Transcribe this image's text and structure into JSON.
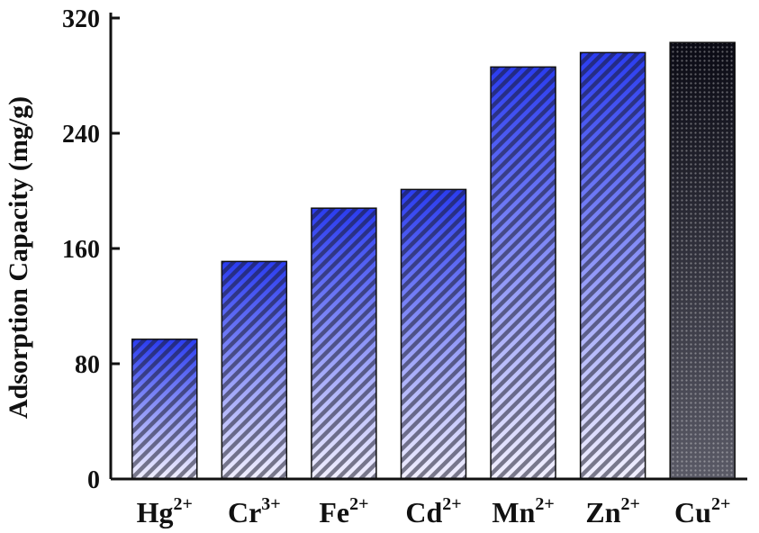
{
  "chart_data": {
    "type": "bar",
    "title": "",
    "xlabel": "",
    "ylabel": "Adsorption Capacity (mg/g)",
    "ylim": [
      0,
      320
    ],
    "yticks": [
      0,
      80,
      160,
      240,
      320
    ],
    "grid": false,
    "legend": "none",
    "categories": [
      {
        "base": "Hg",
        "sup": "2+"
      },
      {
        "base": "Cr",
        "sup": "3+"
      },
      {
        "base": "Fe",
        "sup": "2+"
      },
      {
        "base": "Cd",
        "sup": "2+"
      },
      {
        "base": "Mn",
        "sup": "2+"
      },
      {
        "base": "Zn",
        "sup": "2+"
      },
      {
        "base": "Cu",
        "sup": "2+"
      }
    ],
    "values": [
      97,
      151,
      188,
      201,
      286,
      296,
      303
    ],
    "colors": {
      "top": "#2a3cf0",
      "bottom": "#f2f0ff",
      "stripe": "#1a1a2e",
      "axis": "#111111",
      "dark_top": "#0a0a14",
      "dark_bottom": "#5a5a66"
    }
  }
}
